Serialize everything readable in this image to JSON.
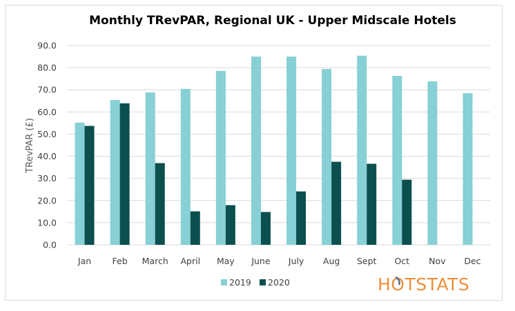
{
  "chart_data": {
    "type": "bar",
    "title": "Monthly TRevPAR, Regional UK - Upper Midscale Hotels",
    "xlabel": "",
    "ylabel": "TRevPAR (£)",
    "ylim": [
      0,
      90
    ],
    "yticks": [
      "0.0",
      "10.0",
      "20.0",
      "30.0",
      "40.0",
      "50.0",
      "60.0",
      "70.0",
      "80.0",
      "90.0"
    ],
    "ytick_values": [
      0,
      10,
      20,
      30,
      40,
      50,
      60,
      70,
      80,
      90
    ],
    "grid": true,
    "legend_position": "bottom",
    "categories": [
      "Jan",
      "Feb",
      "March",
      "April",
      "May",
      "June",
      "July",
      "Aug",
      "Sept",
      "Oct",
      "Nov",
      "Dec"
    ],
    "series": [
      {
        "name": "2019",
        "color": "#87d0d5",
        "values": [
          55.2,
          65.4,
          68.8,
          70.4,
          78.5,
          85.0,
          85.0,
          79.4,
          85.4,
          76.3,
          73.8,
          68.5
        ]
      },
      {
        "name": "2020",
        "color": "#0b4f4f",
        "values": [
          53.7,
          63.9,
          36.9,
          15.1,
          17.9,
          14.8,
          24.1,
          37.5,
          36.6,
          29.4,
          null,
          null
        ]
      }
    ]
  },
  "logo": {
    "text": "HOTSTATS",
    "color": "#ee8f3a",
    "accent_color": "#5a6e8c"
  }
}
